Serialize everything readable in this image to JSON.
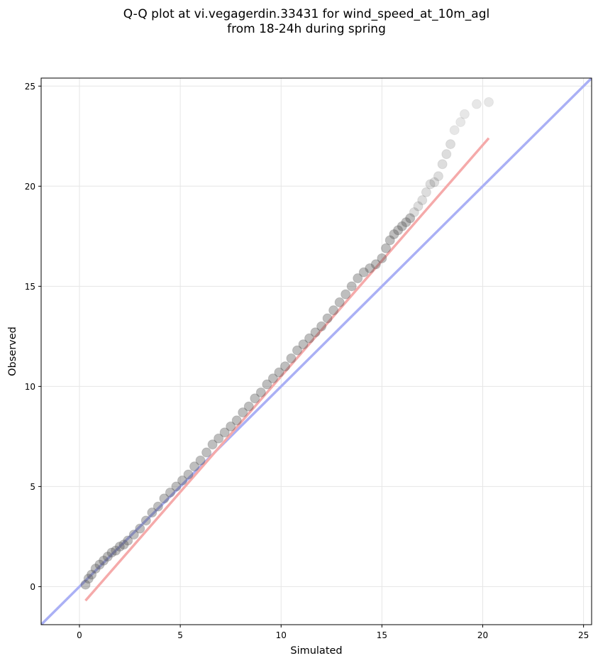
{
  "chart_data": {
    "type": "scatter",
    "title": [
      "Q-Q plot at vi.vegagerdin.33431 for wind_speed_at_10m_agl",
      "from 18-24h during spring"
    ],
    "xlabel": "Simulated",
    "ylabel": "Observed",
    "xlim": [
      -1.9,
      25.4
    ],
    "ylim": [
      -1.9,
      25.4
    ],
    "xticks": [
      0,
      5,
      10,
      15,
      20,
      25
    ],
    "yticks": [
      0,
      5,
      10,
      15,
      20,
      25
    ],
    "grid": true,
    "colors": {
      "identity_line": "#aab0f5",
      "fit_line": "#f5aaaa",
      "point_fill": "#555555",
      "grid": "#e6e6e6"
    },
    "identity_line": {
      "x": [
        -1.9,
        25.4
      ],
      "y": [
        -1.9,
        25.4
      ]
    },
    "fit_line": {
      "x": [
        0.3,
        20.3
      ],
      "y": [
        -0.7,
        22.4
      ]
    },
    "series": [
      {
        "x": [
          0.3,
          0.45,
          0.6,
          0.8,
          1.0,
          1.2,
          1.4,
          1.6,
          1.8,
          2.0,
          2.2,
          2.4,
          2.7,
          3.0,
          3.3,
          3.6,
          3.9,
          4.2,
          4.5,
          4.8,
          5.1,
          5.4,
          5.7,
          6.0,
          6.3,
          6.6,
          6.9,
          7.2,
          7.5,
          7.8,
          8.1,
          8.4,
          8.7,
          9.0,
          9.3,
          9.6,
          9.9,
          10.2,
          10.5,
          10.8,
          11.1,
          11.4,
          11.7,
          12.0,
          12.3,
          12.6,
          12.9,
          13.2,
          13.5,
          13.8,
          14.1,
          14.4,
          14.7,
          15.0,
          15.2,
          15.4,
          15.6,
          15.8,
          16.0,
          16.2,
          16.4,
          16.6,
          16.8,
          17.0,
          17.2,
          17.4,
          17.6,
          17.8,
          18.0,
          18.2,
          18.4,
          18.6,
          18.9,
          19.1,
          19.7,
          20.3
        ],
        "y": [
          0.1,
          0.4,
          0.6,
          0.9,
          1.1,
          1.3,
          1.5,
          1.7,
          1.8,
          2.0,
          2.1,
          2.3,
          2.6,
          2.9,
          3.3,
          3.7,
          4.0,
          4.4,
          4.7,
          5.0,
          5.3,
          5.6,
          6.0,
          6.3,
          6.7,
          7.1,
          7.4,
          7.7,
          8.0,
          8.3,
          8.7,
          9.0,
          9.4,
          9.7,
          10.1,
          10.4,
          10.7,
          11.0,
          11.4,
          11.8,
          12.1,
          12.4,
          12.7,
          13.0,
          13.4,
          13.8,
          14.2,
          14.6,
          15.0,
          15.4,
          15.7,
          15.9,
          16.1,
          16.4,
          16.9,
          17.3,
          17.6,
          17.8,
          18.0,
          18.2,
          18.4,
          18.7,
          19.0,
          19.3,
          19.7,
          20.1,
          20.2,
          20.5,
          21.1,
          21.6,
          22.1,
          22.8,
          23.2,
          23.6,
          24.1,
          24.2
        ]
      }
    ]
  }
}
